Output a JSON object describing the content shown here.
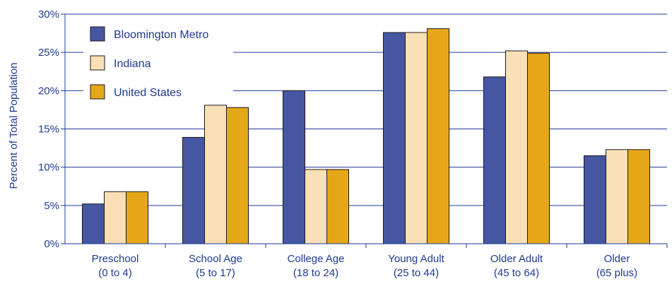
{
  "chart_data": {
    "type": "bar",
    "title": "",
    "xlabel": "",
    "ylabel": "Percent of Total Population",
    "ylim": [
      0,
      30
    ],
    "yticks": [
      0,
      5,
      10,
      15,
      20,
      25,
      30
    ],
    "ytick_labels": [
      "0%",
      "5%",
      "10%",
      "15%",
      "20%",
      "25%",
      "30%"
    ],
    "grid": "horizontal",
    "legend_position": "top-left",
    "categories": [
      [
        "Preschool",
        "(0 to 4)"
      ],
      [
        "School Age",
        "(5 to 17)"
      ],
      [
        "College Age",
        "(18 to 24)"
      ],
      [
        "Young Adult",
        "(25 to 44)"
      ],
      [
        "Older Adult",
        "(45 to 64)"
      ],
      [
        "Older",
        "(65 plus)"
      ]
    ],
    "series": [
      {
        "name": "Bloomington Metro",
        "color": "#4756a3",
        "values": [
          5.2,
          13.9,
          20.0,
          27.6,
          21.8,
          11.5
        ]
      },
      {
        "name": "Indiana",
        "color": "#fae0b6",
        "values": [
          6.8,
          18.1,
          9.7,
          27.6,
          25.2,
          12.3
        ]
      },
      {
        "name": "United States",
        "color": "#e5a718",
        "values": [
          6.8,
          17.8,
          9.7,
          28.1,
          24.9,
          12.3
        ]
      }
    ],
    "colors": {
      "axis": "#1f3a93",
      "grid": "#1f3a93",
      "bar_outline": "#1a1a1a"
    }
  }
}
